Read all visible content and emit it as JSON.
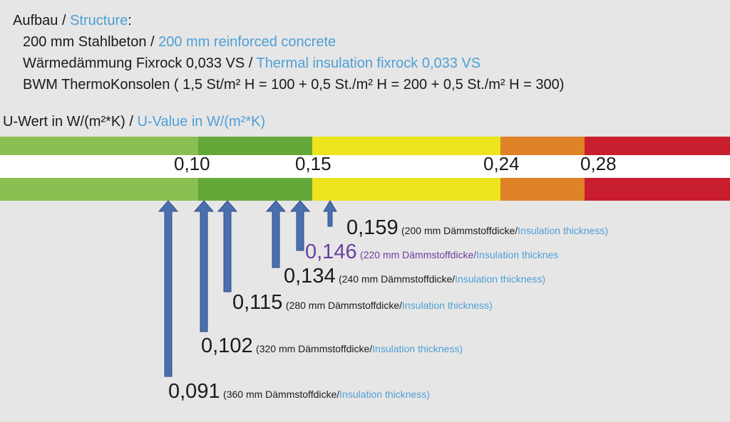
{
  "header": {
    "title_de": "Aufbau /",
    "title_en": "Structure",
    "title_colon": ":",
    "lines": [
      {
        "de": "200 mm Stahlbeton /",
        "en": "200 mm reinforced concrete"
      },
      {
        "de": "Wärmedämmung Fixrock 0,033 VS /",
        "en": "Thermal insulation fixrock 0,033 VS"
      },
      {
        "de": "BWM ThermoKonsolen ( 1,5 St/m² H = 100 + 0,5 St./m² H = 200 + 0,5 St./m² H = 300)",
        "en": ""
      }
    ]
  },
  "uvalue_title": {
    "de": "U-Wert in W/(m²*K) /",
    "en": "U-Value in W/(m²*K)"
  },
  "scale": {
    "thresholds": [
      "0,10",
      "0,15",
      "0,24",
      "0,28"
    ],
    "colors": {
      "light_green": "#8cbf52",
      "green": "#64a83a",
      "yellow": "#ece51d",
      "orange": "#e08228",
      "red": "#c81e2d"
    }
  },
  "readings": [
    {
      "value": "0,159",
      "desc_de": "(200 mm Dämmstoffdicke/",
      "desc_en": "Insulation thickness)",
      "highlight": false
    },
    {
      "value": "0,146",
      "desc_de": "(220 mm Dämmstoffdicke/",
      "desc_en": "Insulation thicknes",
      "highlight": true
    },
    {
      "value": "0,134",
      "desc_de": "(240 mm Dämmstoffdicke/",
      "desc_en": "Insulation thickness)",
      "highlight": false
    },
    {
      "value": "0,115",
      "desc_de": "(280 mm Dämmstoffdicke/",
      "desc_en": "Insulation thickness)",
      "highlight": false
    },
    {
      "value": "0,102",
      "desc_de": "(320 mm Dämmstoffdicke/",
      "desc_en": "Insulation thickness)",
      "highlight": false
    },
    {
      "value": "0,091",
      "desc_de": "(360 mm Dämmstoffdicke/",
      "desc_en": "Insulation thickness)",
      "highlight": false
    }
  ],
  "arrow_color": "#4b6fae"
}
